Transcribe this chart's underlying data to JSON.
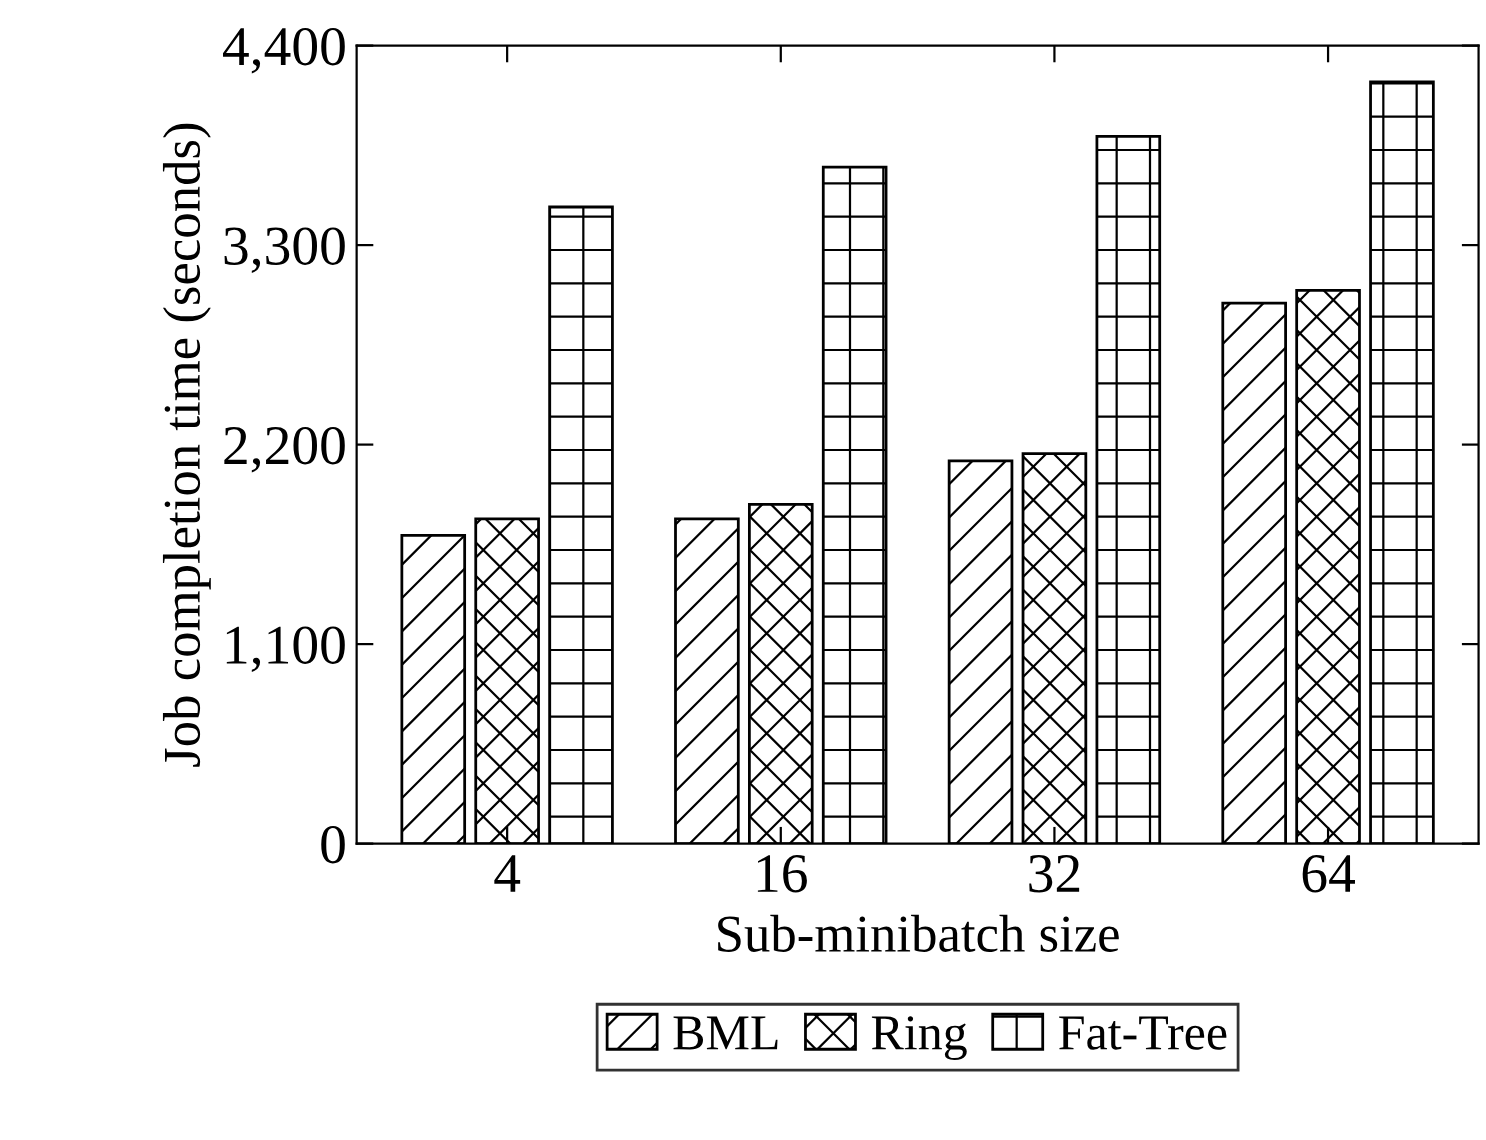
{
  "chart_data": {
    "type": "bar",
    "xlabel": "Sub-minibatch size",
    "ylabel": "Job completion time (seconds)",
    "categories": [
      "4",
      "16",
      "32",
      "64"
    ],
    "series": [
      {
        "name": "BML",
        "color": "#000000",
        "values": [
          1700,
          1790,
          2110,
          2980
        ]
      },
      {
        "name": "Ring",
        "color": "#000000",
        "values": [
          1790,
          1870,
          2150,
          3050
        ]
      },
      {
        "name": "Fat-Tree",
        "color": "#000000",
        "values": [
          3510,
          3730,
          3900,
          4200
        ]
      }
    ],
    "ylim": [
      0,
      4400
    ],
    "yticks": [
      0,
      {
        "value": 1100,
        "label": "1,100"
      },
      {
        "value": 2200,
        "label": "2,200"
      },
      {
        "value": 3300,
        "label": "3,300"
      },
      {
        "value": 4400,
        "label": "4,400"
      }
    ],
    "grid": false,
    "legend": "bottom"
  }
}
